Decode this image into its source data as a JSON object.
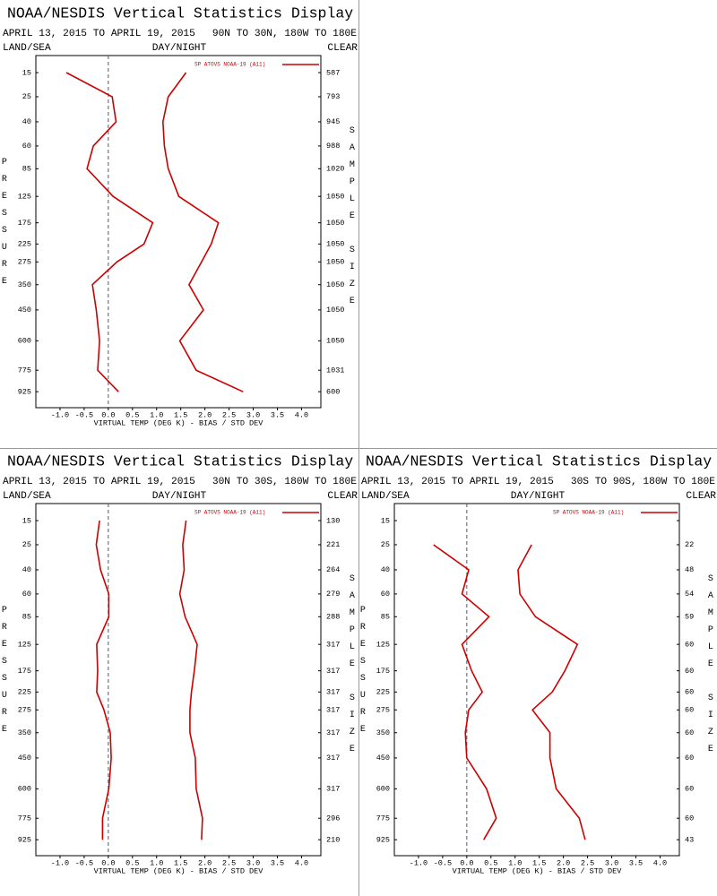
{
  "chart_data": [
    {
      "type": "profile",
      "title": "NOAA/NESDIS Vertical Statistics Display",
      "period": "APRIL 13, 2015 TO APRIL 19, 2015",
      "region": "90N TO 30N, 180W TO 180E",
      "surface": "LAND/SEA",
      "time": "DAY/NIGHT",
      "sky": "CLEAR",
      "xlabel": "VIRTUAL TEMP (DEG K) - BIAS / STD DEV",
      "ylabel": "PRESSURE",
      "y2label": "SAMPLE SIZE",
      "legend": "SP ATOVS NOAA-19 (A11)",
      "y": [
        15,
        25,
        40,
        60,
        85,
        125,
        175,
        225,
        275,
        350,
        450,
        600,
        775,
        925
      ],
      "ylim": [
        10,
        1050
      ],
      "xlim": [
        -1.5,
        4.4
      ],
      "xticks": [
        {
          "value": -1,
          "label": "-1.0"
        },
        -0.5,
        {
          "value": 0,
          "label": "0.0"
        },
        0.5,
        {
          "value": 1,
          "label": "1.0"
        },
        1.5,
        {
          "value": 2,
          "label": "2.0"
        },
        2.5,
        {
          "value": 3,
          "label": "3.0"
        },
        3.5,
        {
          "value": 4,
          "label": "4.0"
        }
      ],
      "sample_size": [
        587,
        793,
        945,
        988,
        1020,
        1050,
        1050,
        1050,
        1050,
        1050,
        1050,
        1050,
        1031,
        600
      ],
      "series": [
        {
          "color": "#cc0000",
          "values": [
            -0.87,
            0.08,
            0.16,
            -0.31,
            -0.44,
            0.1,
            0.92,
            0.74,
            0.18,
            -0.33,
            -0.25,
            -0.18,
            -0.22,
            0.21
          ]
        },
        {
          "color": "#cc0000",
          "values": [
            1.61,
            1.24,
            1.13,
            1.16,
            1.24,
            1.46,
            2.28,
            2.13,
            1.93,
            1.67,
            1.97,
            1.48,
            1.82,
            2.79
          ]
        }
      ]
    },
    {
      "type": "profile",
      "title": "NOAA/NESDIS Vertical Statistics Display",
      "period": "APRIL 13, 2015 TO APRIL 19, 2015",
      "region": "30N TO 30S, 180W TO 180E",
      "surface": "LAND/SEA",
      "time": "DAY/NIGHT",
      "sky": "CLEAR",
      "xlabel": "VIRTUAL TEMP (DEG K) - BIAS / STD DEV",
      "ylabel": "PRESSURE",
      "y2label": "SAMPLE SIZE",
      "legend": "SP ATOVS NOAA-19 (A11)",
      "y": [
        15,
        25,
        40,
        60,
        85,
        125,
        175,
        225,
        275,
        350,
        450,
        600,
        775,
        925
      ],
      "ylim": [
        10,
        1050
      ],
      "xlim": [
        -1.5,
        4.4
      ],
      "xticks": [
        {
          "value": -1,
          "label": "-1.0"
        },
        -0.5,
        {
          "value": 0,
          "label": "0.0"
        },
        0.5,
        {
          "value": 1,
          "label": "1.0"
        },
        1.5,
        {
          "value": 2,
          "label": "2.0"
        },
        2.5,
        {
          "value": 3,
          "label": "3.0"
        },
        3.5,
        {
          "value": 4,
          "label": "4.0"
        }
      ],
      "sample_size": [
        130,
        221,
        264,
        279,
        288,
        317,
        317,
        317,
        317,
        317,
        317,
        317,
        296,
        210
      ],
      "series": [
        {
          "color": "#cc0000",
          "values": [
            -0.18,
            -0.25,
            -0.16,
            0.01,
            0.01,
            -0.24,
            -0.22,
            -0.24,
            -0.09,
            0.04,
            0.06,
            0.01,
            -0.12,
            -0.12
          ]
        },
        {
          "color": "#cc0000",
          "values": [
            1.61,
            1.54,
            1.57,
            1.48,
            1.59,
            1.84,
            1.78,
            1.72,
            1.69,
            1.69,
            1.8,
            1.82,
            1.95,
            1.93
          ]
        }
      ]
    },
    {
      "type": "profile",
      "title": "NOAA/NESDIS Vertical Statistics Display",
      "period": "APRIL 13, 2015 TO APRIL 19, 2015",
      "region": "30S TO 90S, 180W TO 180E",
      "surface": "LAND/SEA",
      "time": "DAY/NIGHT",
      "sky": "CLEAR",
      "xlabel": "VIRTUAL TEMP (DEG K) - BIAS / STD DEV",
      "ylabel": "PRESSURE",
      "y2label": "SAMPLE SIZE",
      "legend": "SP ATOVS NOAA-19 (A11)",
      "y": [
        15,
        25,
        40,
        60,
        85,
        125,
        175,
        225,
        275,
        350,
        450,
        600,
        775,
        925
      ],
      "ylim": [
        10,
        1050
      ],
      "xlim": [
        -1.5,
        4.4
      ],
      "xticks": [
        {
          "value": -1,
          "label": "-1.0"
        },
        -0.5,
        {
          "value": 0,
          "label": "0.0"
        },
        0.5,
        {
          "value": 1,
          "label": "1.0"
        },
        1.5,
        {
          "value": 2,
          "label": "2.0"
        },
        2.5,
        {
          "value": 3,
          "label": "3.0"
        },
        3.5,
        {
          "value": 4,
          "label": "4.0"
        }
      ],
      "sample_size": [
        null,
        22,
        48,
        54,
        59,
        60,
        60,
        60,
        60,
        60,
        60,
        60,
        60,
        43
      ],
      "series": [
        {
          "color": "#cc0000",
          "values": [
            null,
            -0.69,
            0.04,
            -0.1,
            0.46,
            -0.1,
            0.1,
            0.32,
            0.04,
            -0.03,
            0.0,
            0.41,
            0.61,
            0.35
          ]
        },
        {
          "color": "#cc0000",
          "values": [
            null,
            1.34,
            1.06,
            1.1,
            1.42,
            2.29,
            2.03,
            1.77,
            1.36,
            1.72,
            1.72,
            1.85,
            2.33,
            2.45
          ]
        }
      ]
    }
  ]
}
